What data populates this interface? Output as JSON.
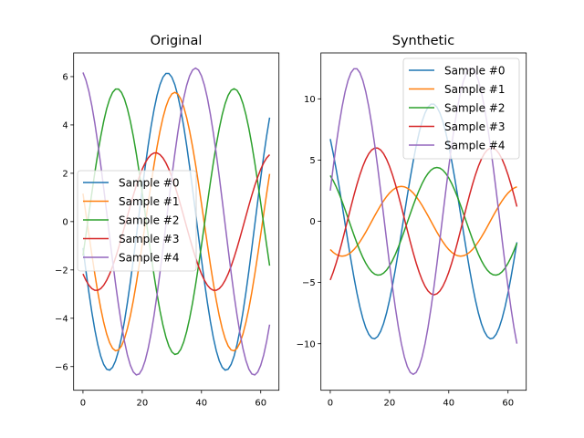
{
  "colors": [
    "#1f77b4",
    "#ff7f0e",
    "#2ca02c",
    "#d62728",
    "#9467bd"
  ],
  "chart_data": [
    {
      "type": "line",
      "title": "Original",
      "xlim": [
        -3.15,
        66.15
      ],
      "ylim": [
        -6.98,
        6.98
      ],
      "xticks": [
        0,
        20,
        40,
        60
      ],
      "xtick_labels": [
        "0",
        "20",
        "40",
        "60"
      ],
      "yticks": [
        -6,
        -4,
        -2,
        0,
        2,
        4,
        6
      ],
      "ytick_labels": [
        "−6",
        "−4",
        "−2",
        "0",
        "2",
        "4",
        "6"
      ],
      "grid": false,
      "legend_position": "center-left",
      "x": {
        "start": 0,
        "end": 63,
        "step": 1
      },
      "series_form": "amplitude * cos(2*pi*(x - peak_x)/period)",
      "series": [
        {
          "name": "Sample #0",
          "amplitude": 6.15,
          "period": 39.5,
          "peak_x": 28.5
        },
        {
          "name": "Sample #1",
          "amplitude": 5.35,
          "period": 39.5,
          "peak_x": 31
        },
        {
          "name": "Sample #2",
          "amplitude": 5.5,
          "period": 39.5,
          "peak_x": 11.5
        },
        {
          "name": "Sample #3",
          "amplitude": 2.85,
          "period": 40,
          "peak_x": 24.5
        },
        {
          "name": "Sample #4",
          "amplitude": 6.35,
          "period": 39.5,
          "peak_x": 38
        }
      ]
    },
    {
      "type": "line",
      "title": "Synthetic",
      "xlim": [
        -3.15,
        66.15
      ],
      "ylim": [
        -13.8,
        13.75
      ],
      "xticks": [
        0,
        20,
        40,
        60
      ],
      "xtick_labels": [
        "0",
        "20",
        "40",
        "60"
      ],
      "yticks": [
        -10,
        -5,
        0,
        5,
        10
      ],
      "ytick_labels": [
        "−10",
        "−5",
        "0",
        "5",
        "10"
      ],
      "grid": false,
      "legend_position": "upper-right",
      "x": {
        "start": 0,
        "end": 63,
        "step": 1
      },
      "series_form": "amplitude * cos(2*pi*(x - peak_x)/period)",
      "series": [
        {
          "name": "Sample #0",
          "amplitude": 9.6,
          "period": 39.5,
          "peak_x": 34.5
        },
        {
          "name": "Sample #1",
          "amplitude": 2.85,
          "period": 40,
          "peak_x": 24
        },
        {
          "name": "Sample #2",
          "amplitude": 4.4,
          "period": 39.5,
          "peak_x": 36
        },
        {
          "name": "Sample #3",
          "amplitude": 6.0,
          "period": 39,
          "peak_x": 15.5
        },
        {
          "name": "Sample #4",
          "amplitude": 12.5,
          "period": 39,
          "peak_x": 8.5
        }
      ]
    }
  ]
}
